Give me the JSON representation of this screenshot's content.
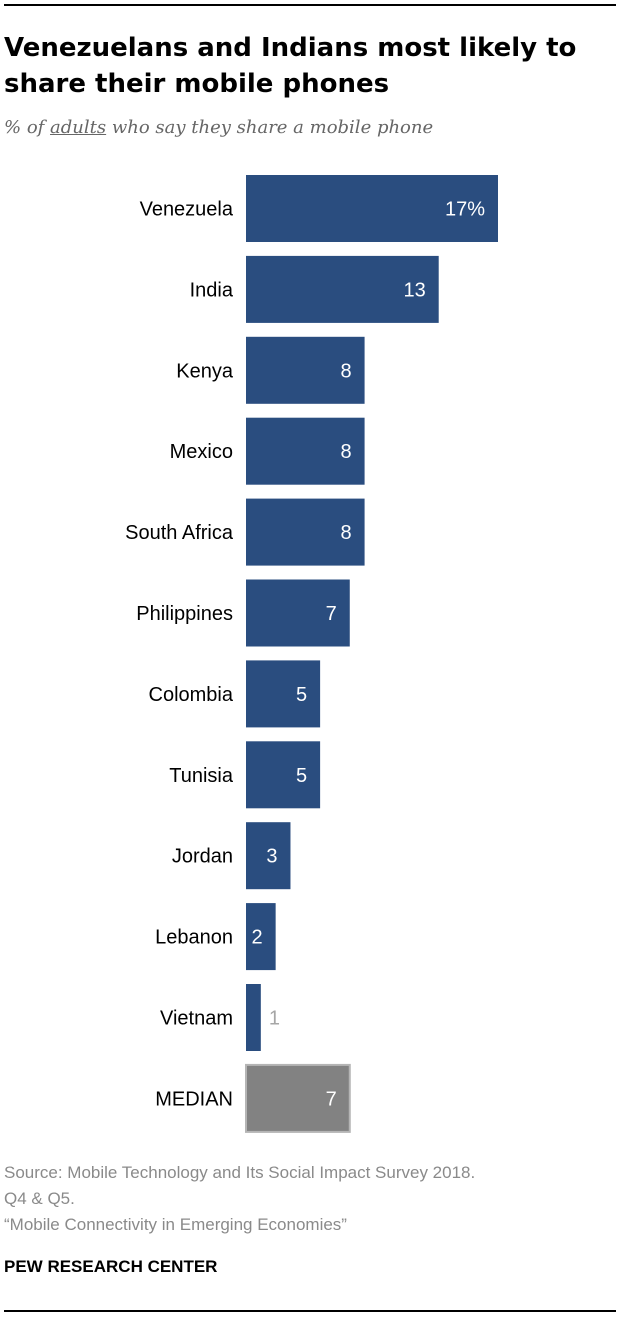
{
  "header": {
    "title": "Venezuelans and Indians most likely to share their mobile phones",
    "subtitle_prefix": "% of ",
    "subtitle_emph": "adults",
    "subtitle_suffix": " who say they share a mobile phone"
  },
  "chart_data": {
    "type": "bar",
    "orientation": "horizontal",
    "title": "Venezuelans and Indians most likely to share their mobile phones",
    "subtitle": "% of adults who say they share a mobile phone",
    "categories": [
      "Venezuela",
      "India",
      "Kenya",
      "Mexico",
      "South Africa",
      "Philippines",
      "Colombia",
      "Tunisia",
      "Jordan",
      "Lebanon",
      "Vietnam",
      "MEDIAN"
    ],
    "values": [
      17,
      13,
      8,
      8,
      8,
      7,
      5,
      5,
      3,
      2,
      1,
      7
    ],
    "value_labels": [
      "17%",
      "13",
      "8",
      "8",
      "8",
      "7",
      "5",
      "5",
      "3",
      "2",
      "1",
      "7"
    ],
    "xlim": [
      0,
      17
    ],
    "grid": false,
    "colors": {
      "bar": "#2a4d7f",
      "median_bar": "#828282",
      "median_border": "#b5b5b5",
      "label_inside": "#ffffff",
      "label_outside": "#a6a6a6"
    }
  },
  "footer": {
    "source_line1": "Source: Mobile Technology and Its Social Impact Survey 2018.",
    "source_line2": "Q4 & Q5.",
    "report": "“Mobile Connectivity in Emerging Economies”",
    "brand": "PEW RESEARCH CENTER"
  }
}
